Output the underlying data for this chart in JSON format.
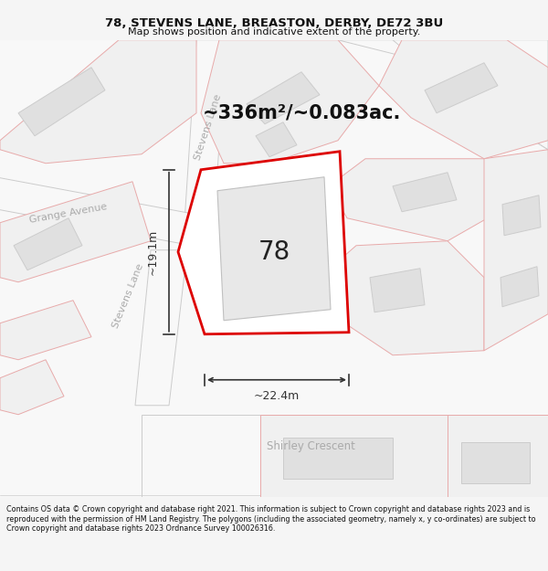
{
  "title": "78, STEVENS LANE, BREASTON, DERBY, DE72 3BU",
  "subtitle": "Map shows position and indicative extent of the property.",
  "footer": "Contains OS data © Crown copyright and database right 2021. This information is subject to Crown copyright and database rights 2023 and is reproduced with the permission of HM Land Registry. The polygons (including the associated geometry, namely x, y co-ordinates) are subject to Crown copyright and database rights 2023 Ordnance Survey 100026316.",
  "area_label": "~336m²/~0.083ac.",
  "property_number": "78",
  "dim_width": "~22.4m",
  "dim_height": "~19.1m",
  "bg_color": "#f5f5f5",
  "map_bg": "#ffffff",
  "plot_fill": "#f0f0f0",
  "plot_edge": "#e8aaaa",
  "bldg_fill": "#e0e0e0",
  "bldg_edge": "#cccccc",
  "road_fill": "#f8f8f8",
  "road_edge": "#cccccc",
  "property_fill": "#ffffff",
  "property_edge": "#dd0000",
  "title_color": "#111111",
  "street_label_color": "#999999",
  "annotation_color": "#222222",
  "dim_color": "#333333",
  "footer_color": "#111111"
}
